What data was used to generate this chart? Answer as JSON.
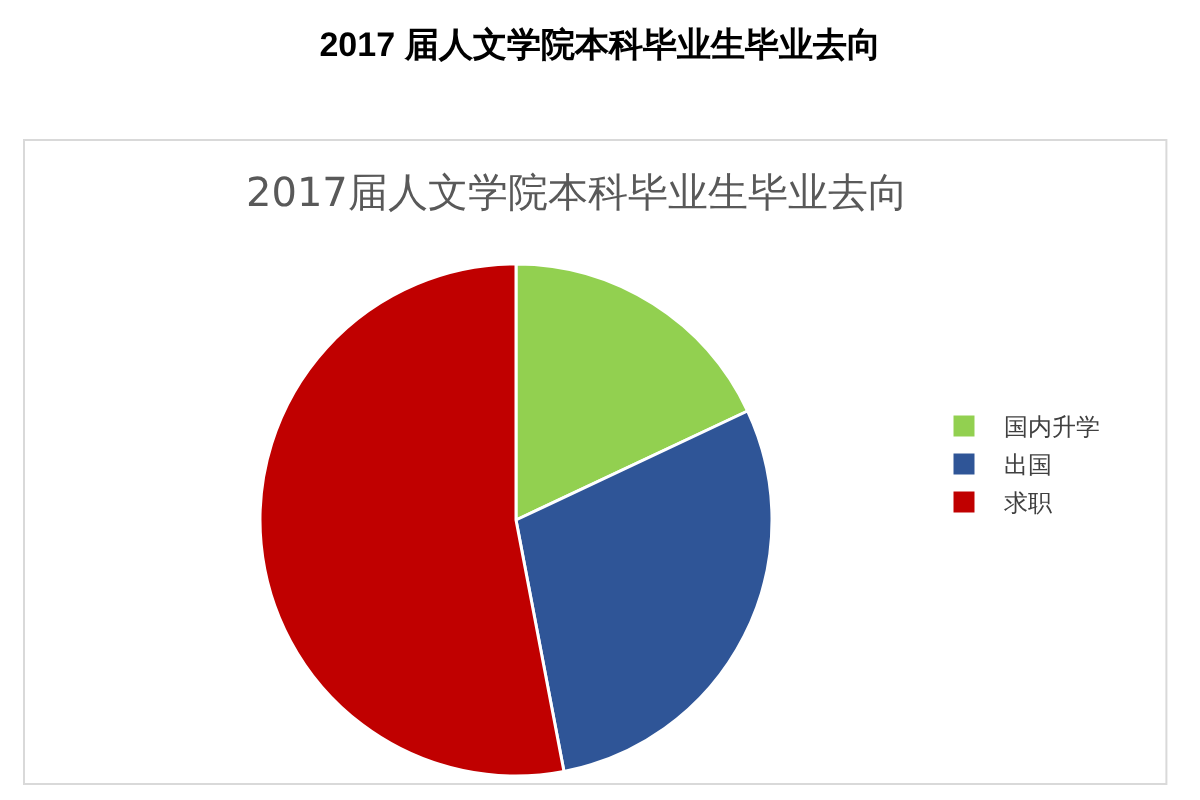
{
  "chart_data": {
    "type": "pie",
    "title": "2017 届人文学院本科毕业生毕业去向",
    "subtitle": "2017届人文学院本科毕业生毕业去向",
    "categories": [
      "国内升学",
      "出国",
      "求职"
    ],
    "values": [
      18,
      29,
      53
    ],
    "colors": [
      "#92d050",
      "#2f5597",
      "#c00000"
    ],
    "legend": "right"
  }
}
